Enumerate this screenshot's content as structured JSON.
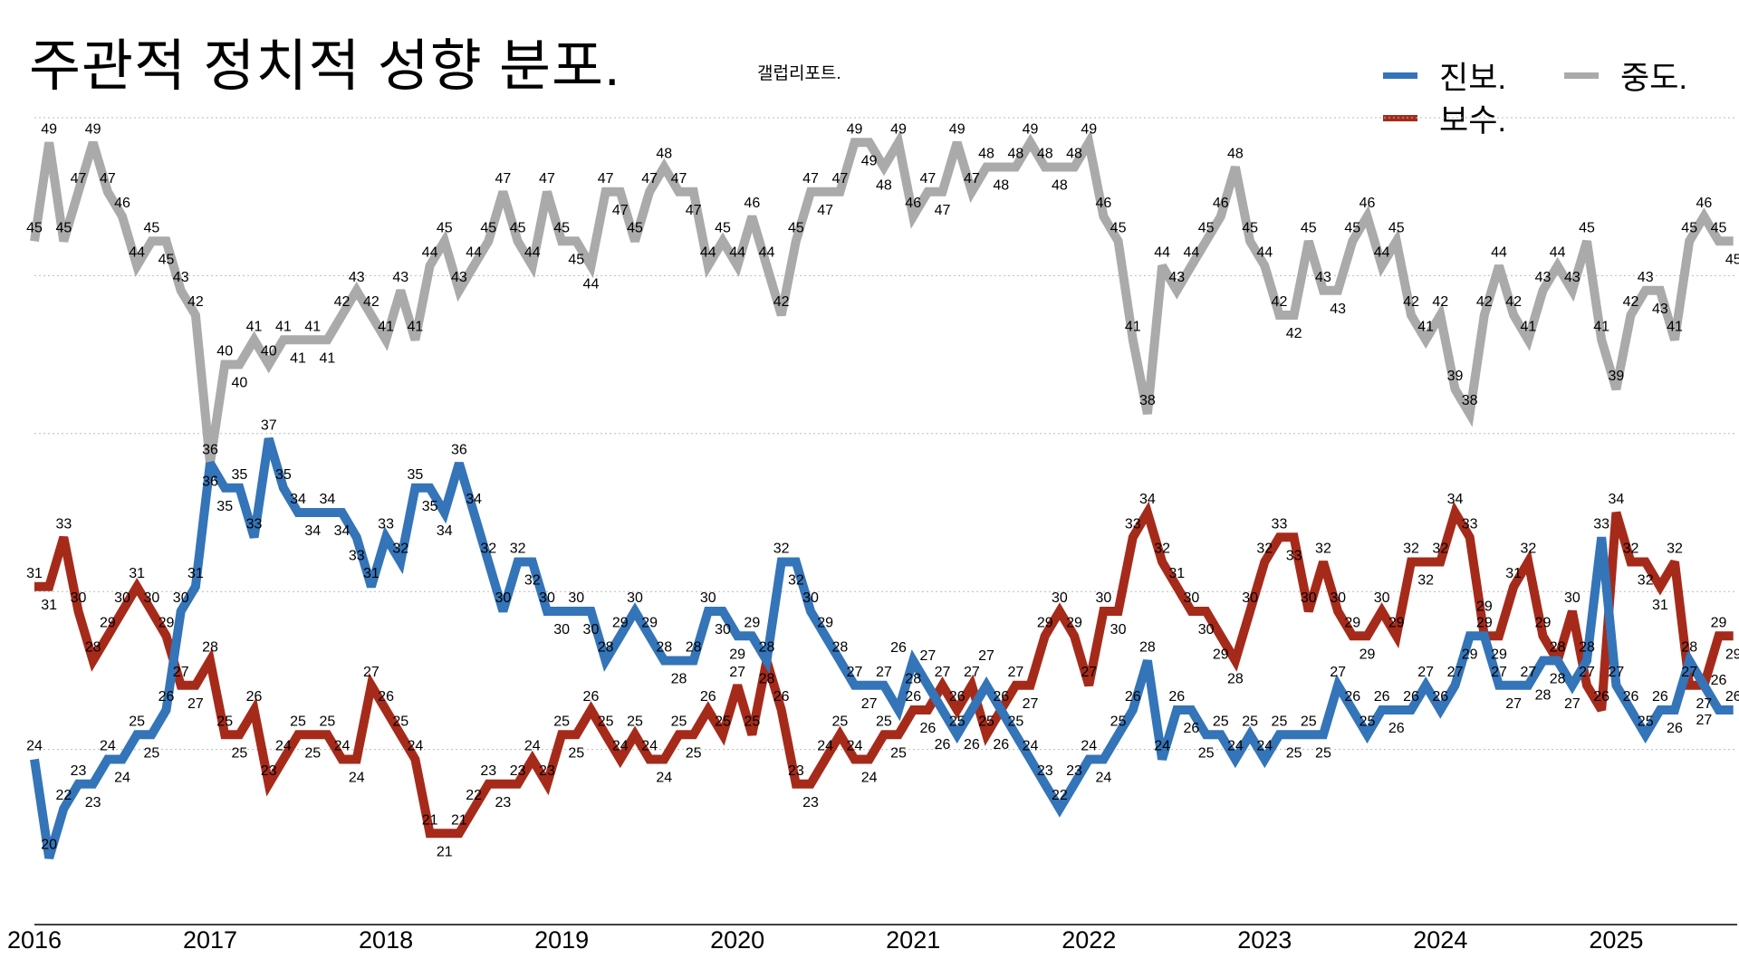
{
  "header": {
    "title": "주관적 정치적 성향 분포.",
    "source": "갤럽리포트."
  },
  "colors": {
    "progressive": "#3474b8",
    "conservative": "#a62a1a",
    "moderate": "#aaaaaa",
    "grid": "#bbbbbb",
    "axis": "#000000"
  },
  "chart_data": {
    "type": "line",
    "title": "주관적 정치적 성향 분포.",
    "xlabel": "",
    "ylabel": "",
    "x_start": "2016-01",
    "x_frequency": "monthly",
    "x_ticks": [
      "2016",
      "2017",
      "2018",
      "2019",
      "2020",
      "2021",
      "2022",
      "2023",
      "2024",
      "2025"
    ],
    "ylim": [
      18,
      50
    ],
    "grid": true,
    "legend_position": "top-right",
    "series": [
      {
        "key": "moderate",
        "name": "중도.",
        "values": [
          45,
          49,
          45,
          47,
          49,
          47,
          46,
          44,
          45,
          45,
          43,
          42,
          36,
          40,
          40,
          41,
          40,
          41,
          41,
          41,
          41,
          42,
          43,
          42,
          41,
          43,
          41,
          44,
          45,
          43,
          44,
          45,
          47,
          45,
          44,
          47,
          45,
          45,
          44,
          47,
          47,
          45,
          47,
          48,
          47,
          47,
          44,
          45,
          44,
          46,
          44,
          42,
          45,
          47,
          47,
          47,
          49,
          49,
          48,
          49,
          46,
          47,
          47,
          49,
          47,
          48,
          48,
          48,
          49,
          48,
          48,
          48,
          49,
          46,
          45,
          41,
          38,
          44,
          43,
          44,
          45,
          46,
          48,
          45,
          44,
          42,
          42,
          45,
          43,
          43,
          45,
          46,
          44,
          45,
          42,
          41,
          42,
          39,
          38,
          42,
          44,
          42,
          41,
          43,
          44,
          43,
          45,
          41,
          39,
          42,
          43,
          43,
          41,
          45,
          46,
          45,
          45
        ]
      },
      {
        "key": "conservative",
        "name": "보수.",
        "values": [
          31,
          31,
          33,
          30,
          28,
          29,
          30,
          31,
          30,
          29,
          27,
          27,
          28,
          25,
          25,
          26,
          23,
          24,
          25,
          25,
          25,
          24,
          24,
          27,
          26,
          25,
          24,
          21,
          21,
          21,
          22,
          23,
          23,
          23,
          24,
          23,
          25,
          25,
          26,
          25,
          24,
          25,
          24,
          24,
          25,
          25,
          26,
          25,
          27,
          25,
          28,
          26,
          23,
          23,
          24,
          25,
          24,
          24,
          25,
          25,
          26,
          26,
          27,
          26,
          27,
          25,
          26,
          27,
          27,
          29,
          30,
          29,
          27,
          30,
          30,
          33,
          34,
          32,
          31,
          30,
          30,
          29,
          28,
          30,
          32,
          33,
          33,
          30,
          32,
          30,
          29,
          29,
          30,
          29,
          32,
          32,
          32,
          34,
          33,
          29,
          29,
          31,
          32,
          29,
          28,
          30,
          27,
          26,
          34,
          32,
          32,
          31,
          32,
          27,
          27,
          29,
          29
        ]
      },
      {
        "key": "progressive",
        "name": "진보.",
        "values": [
          24,
          20,
          22,
          23,
          23,
          24,
          24,
          25,
          25,
          26,
          30,
          31,
          36,
          35,
          35,
          33,
          37,
          35,
          34,
          34,
          34,
          34,
          33,
          31,
          33,
          32,
          35,
          35,
          34,
          36,
          34,
          32,
          30,
          32,
          32,
          30,
          30,
          30,
          30,
          28,
          29,
          30,
          29,
          28,
          28,
          28,
          30,
          30,
          29,
          29,
          28,
          32,
          32,
          30,
          29,
          28,
          27,
          27,
          27,
          26,
          28,
          27,
          26,
          25,
          26,
          27,
          26,
          25,
          24,
          23,
          22,
          23,
          24,
          24,
          25,
          26,
          28,
          24,
          26,
          26,
          25,
          25,
          24,
          25,
          24,
          25,
          25,
          25,
          25,
          27,
          26,
          25,
          26,
          26,
          26,
          27,
          26,
          27,
          29,
          29,
          27,
          27,
          27,
          28,
          28,
          27,
          28,
          33,
          27,
          26,
          25,
          26,
          26,
          28,
          27,
          26,
          26
        ]
      }
    ]
  }
}
